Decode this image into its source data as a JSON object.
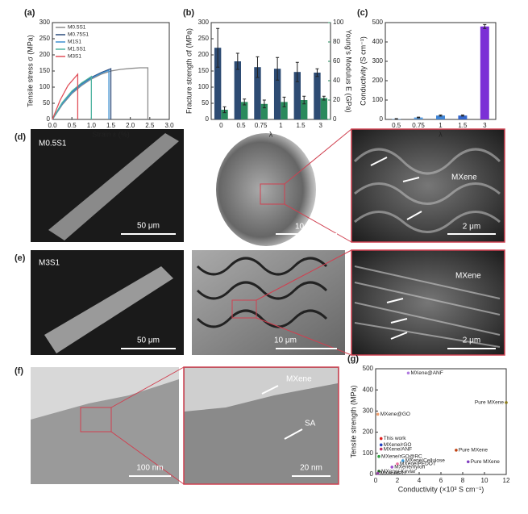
{
  "chart_data": [
    {
      "type": "line",
      "label": "(a)",
      "xlabel": "Strain ε (%)",
      "ylabel": "Tensile stress σ (MPa)",
      "xlim": [
        0,
        3
      ],
      "xticks": [
        {
          "value": 0,
          "label": "0.0"
        },
        {
          "value": 0.5,
          "label": "0.5"
        },
        {
          "value": 1,
          "label": "1.0"
        },
        {
          "value": 1.5,
          "label": "1.5"
        },
        {
          "value": 2,
          "label": "2.0"
        },
        {
          "value": 2.5,
          "label": "2.5"
        },
        {
          "value": 3,
          "label": "3.0"
        }
      ],
      "ylim": [
        0,
        300
      ],
      "yticks": [
        0,
        50,
        100,
        150,
        200,
        250,
        300
      ],
      "series": [
        {
          "name": "M0.5S1",
          "color": "#8c8c8c",
          "x": [
            0,
            0.25,
            0.5,
            0.75,
            1,
            1.25,
            1.5,
            1.75,
            2,
            2.25,
            2.45,
            2.45
          ],
          "values": [
            0,
            45,
            80,
            105,
            125,
            140,
            150,
            155,
            158,
            160,
            160,
            0
          ]
        },
        {
          "name": "M0.75S1",
          "color": "#2b4a7a",
          "x": [
            0,
            0.25,
            0.5,
            0.75,
            1,
            1.25,
            1.5,
            1.5
          ],
          "values": [
            0,
            50,
            85,
            110,
            130,
            145,
            157,
            0
          ]
        },
        {
          "name": "M1S1",
          "color": "#3d8fd1",
          "x": [
            0,
            0.25,
            0.5,
            0.75,
            1,
            1.25,
            1.45,
            1.45
          ],
          "values": [
            0,
            48,
            83,
            108,
            128,
            143,
            152,
            0
          ]
        },
        {
          "name": "M1.5S1",
          "color": "#4fb3a0",
          "x": [
            0,
            0.25,
            0.5,
            0.75,
            1,
            1
          ],
          "values": [
            0,
            52,
            88,
            113,
            133,
            0
          ]
        },
        {
          "name": "M3S1",
          "color": "#e0505a",
          "x": [
            0,
            0.2,
            0.4,
            0.65,
            0.65
          ],
          "values": [
            0,
            60,
            105,
            140,
            0
          ]
        }
      ]
    },
    {
      "type": "bar",
      "label": "(b)",
      "xlabel": "λ",
      "ylabel": "Fracture strength σf (MPa)",
      "y2label": "Young's Modulus E (GPa)",
      "categories": [
        "0",
        "0.5",
        "0.75",
        "1",
        "1.5",
        "3"
      ],
      "ylim": [
        0,
        300
      ],
      "yticks": [
        0,
        50,
        100,
        150,
        200,
        250,
        300
      ],
      "y2lim": [
        0,
        100
      ],
      "y2ticks": [
        0,
        20,
        40,
        60,
        80,
        100
      ],
      "series": [
        {
          "name": "Fracture strength",
          "color": "#2d4b73",
          "values": [
            222,
            180,
            162,
            157,
            147,
            145
          ],
          "errors": [
            60,
            25,
            32,
            35,
            30,
            12
          ]
        },
        {
          "name": "Young's Modulus",
          "color": "#2a8a5c",
          "axis": "y2",
          "values": [
            10,
            18,
            16,
            18,
            20,
            22
          ],
          "errors": [
            3,
            3,
            4,
            5,
            4,
            2
          ]
        }
      ]
    },
    {
      "type": "bar",
      "label": "(c)",
      "xlabel": "λ",
      "ylabel": "Conductivity (S cm⁻¹)",
      "categories": [
        "0.5",
        "0.75",
        "1",
        "1.5",
        "3"
      ],
      "ylim": [
        0,
        500
      ],
      "yticks": [
        0,
        100,
        200,
        300,
        400,
        500
      ],
      "series": [
        {
          "name": "Conductivity",
          "color": "#7b2fd6",
          "colors": [
            "#7fb2e3",
            "#5a9bdc",
            "#3f85d6",
            "#3366cc",
            "#7b2fd6"
          ],
          "values": [
            3,
            10,
            20,
            20,
            480
          ],
          "errors": [
            1,
            2,
            3,
            3,
            10
          ]
        }
      ]
    },
    {
      "type": "scatter",
      "label": "(g)",
      "xlabel": "Conductivity (×10³ S cm⁻¹)",
      "ylabel": "Tensile strength (MPa)",
      "xlim": [
        0,
        12
      ],
      "xticks": [
        0,
        2,
        4,
        6,
        8,
        10,
        12
      ],
      "ylim": [
        0,
        500
      ],
      "yticks": [
        0,
        100,
        200,
        300,
        400,
        500
      ],
      "series": [
        {
          "name": "MXene@ANF",
          "color": "#b07be0",
          "x": [
            3
          ],
          "values": [
            480
          ]
        },
        {
          "name": "Pure MXene",
          "color": "#8a7a1a",
          "x": [
            12
          ],
          "values": [
            340
          ]
        },
        {
          "name": "MXene@GO",
          "color": "#f0a070",
          "x": [
            0.2
          ],
          "values": [
            285
          ]
        },
        {
          "name": "This work",
          "color": "#e02020",
          "x": [
            0.5
          ],
          "values": [
            170
          ]
        },
        {
          "name": "MXene/rGO",
          "color": "#2040c0",
          "x": [
            0.5
          ],
          "values": [
            140
          ]
        },
        {
          "name": "MXene/ANF",
          "color": "#c03060",
          "x": [
            0.5
          ],
          "values": [
            120
          ]
        },
        {
          "name": "Pure MXene",
          "color": "#c04010",
          "x": [
            7.4
          ],
          "values": [
            115
          ]
        },
        {
          "name": "MXene/rGO@RC",
          "color": "#30a040",
          "x": [
            0.3
          ],
          "values": [
            85
          ]
        },
        {
          "name": "MXene/Cellulose",
          "color": "#40a0e0",
          "x": [
            2.5
          ],
          "values": [
            65
          ]
        },
        {
          "name": "Pure MXene",
          "color": "#8040c0",
          "x": [
            8.5
          ],
          "values": [
            60
          ]
        },
        {
          "name": "MXene/PEDOT",
          "color": "#f070a0",
          "x": [
            2
          ],
          "values": [
            50
          ]
        },
        {
          "name": "MXene/nylon",
          "color": "#a050d0",
          "x": [
            1.5
          ],
          "values": [
            35
          ]
        },
        {
          "name": "MXene/ Kevlar",
          "color": "#206020",
          "x": [
            0.3
          ],
          "values": [
            15
          ]
        },
        {
          "name": "MXene/PU",
          "color": "#9040a0",
          "x": [
            0.2
          ],
          "values": [
            5
          ]
        }
      ]
    }
  ],
  "micrographs": {
    "d": {
      "label": "(d)",
      "sample": "M0.5S1",
      "scales": [
        "50 μm",
        "10 μm",
        "2 μm"
      ],
      "annotation": "MXene"
    },
    "e": {
      "label": "(e)",
      "sample": "M3S1",
      "scales": [
        "50 μm",
        "10 μm",
        "2 μm"
      ],
      "annotation": "MXene"
    },
    "f": {
      "label": "(f)",
      "scales": [
        "100 nm",
        "20 nm"
      ],
      "annotations": [
        "MXene",
        "SA"
      ]
    }
  }
}
